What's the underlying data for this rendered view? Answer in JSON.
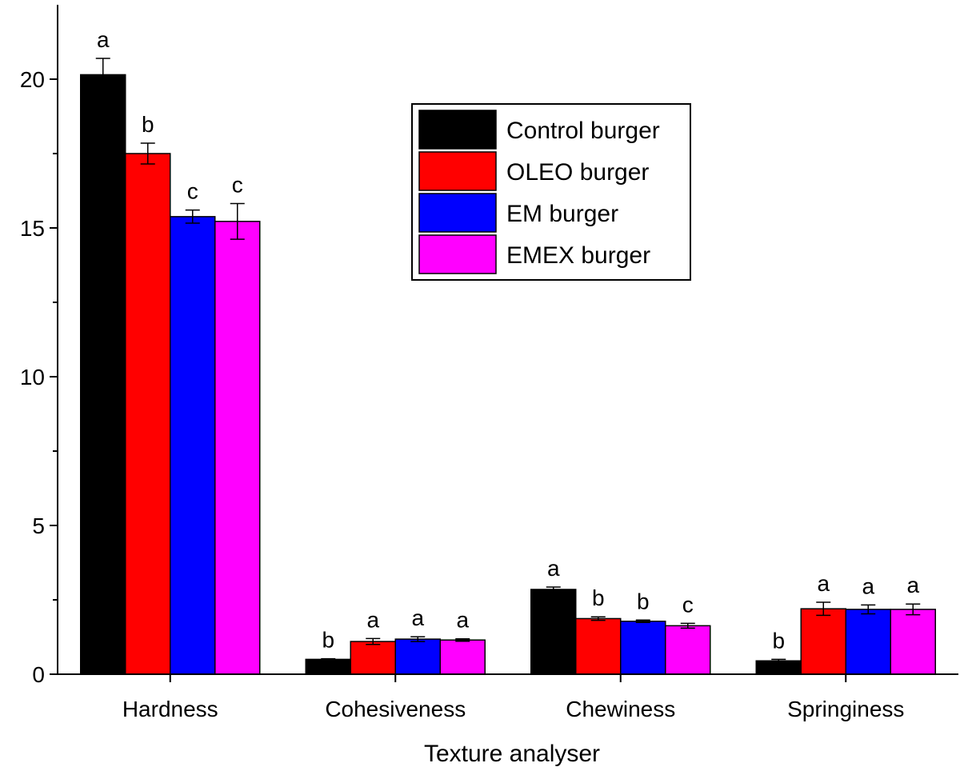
{
  "chart_data": {
    "type": "bar",
    "title": "",
    "xlabel": "Texture analyser",
    "ylabel": "",
    "ylim": [
      0,
      22.5
    ],
    "yticks": [
      0,
      5,
      10,
      15,
      20
    ],
    "categories": [
      "Hardness",
      "Cohesiveness",
      "Chewiness",
      "Springiness"
    ],
    "series": [
      {
        "name": "Control burger",
        "color": "#000000",
        "values": [
          20.15,
          0.5,
          2.85,
          0.45
        ],
        "errors": [
          0.55,
          0.02,
          0.08,
          0.05
        ],
        "letters": [
          "a",
          "b",
          "a",
          "b"
        ]
      },
      {
        "name": "OLEO burger",
        "color": "#ff0000",
        "values": [
          17.5,
          1.1,
          1.87,
          2.2
        ],
        "errors": [
          0.35,
          0.1,
          0.06,
          0.22
        ],
        "letters": [
          "b",
          "a",
          "b",
          "a"
        ]
      },
      {
        "name": "EM burger",
        "color": "#0000ff",
        "values": [
          15.38,
          1.18,
          1.78,
          2.18
        ],
        "errors": [
          0.22,
          0.08,
          0.04,
          0.15
        ],
        "letters": [
          "c",
          "a",
          "b",
          "a"
        ]
      },
      {
        "name": "EMEX burger",
        "color": "#ff00ff",
        "values": [
          15.22,
          1.15,
          1.63,
          2.18
        ],
        "errors": [
          0.6,
          0.04,
          0.08,
          0.18
        ],
        "letters": [
          "c",
          "a",
          "c",
          "a"
        ]
      }
    ],
    "legend_position": "top-right",
    "grid": false
  }
}
